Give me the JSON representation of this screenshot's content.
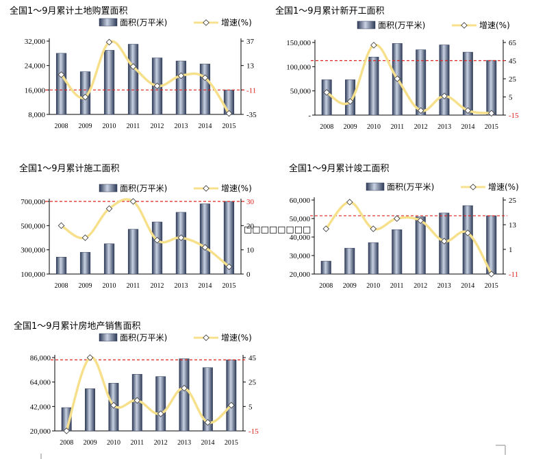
{
  "colors": {
    "bar_dark": "#2e3b57",
    "bar_light": "#c9d2e3",
    "line": "#f7e08c",
    "marker_fill": "#ffffff",
    "marker_stroke": "#333333",
    "ref_line": "#e0201a",
    "axis": "#000000"
  },
  "legend": {
    "bar_label": "面积(万平米)",
    "line_label": "增速(%)"
  },
  "overlay_text": "□□□□□□□□",
  "chart_data": [
    {
      "type": "bar+line",
      "title": "全国1～9月累计土地购置面积",
      "categories": [
        "2008",
        "2009",
        "2010",
        "2011",
        "2012",
        "2013",
        "2014",
        "2015"
      ],
      "series": [
        {
          "name": "面积(万平米)",
          "axis": "left",
          "values": [
            28000,
            22000,
            29000,
            31000,
            26500,
            25500,
            24500,
            16000
          ]
        },
        {
          "name": "增速(%)",
          "axis": "right",
          "values": [
            4,
            -18,
            36,
            12,
            -7,
            3,
            1,
            -34
          ]
        }
      ],
      "left_axis": {
        "min": 8000,
        "max": 32000,
        "ticks": [
          "8,000",
          "16,000",
          "24,000",
          "32,000"
        ],
        "tick_values": [
          8000,
          16000,
          24000,
          32000
        ]
      },
      "right_axis": {
        "min": -35,
        "max": 37,
        "ticks": [
          "-35",
          "-11",
          "13",
          "37"
        ],
        "tick_values": [
          -35,
          -11,
          13,
          37
        ],
        "red_tick": "-11"
      },
      "ref_line": {
        "axis": "right",
        "value": -11
      }
    },
    {
      "type": "bar+line",
      "title": "全国1～9月累计新开工面积",
      "categories": [
        "2008",
        "2009",
        "2010",
        "2011",
        "2012",
        "2013",
        "2014",
        "2015"
      ],
      "series": [
        {
          "name": "面积(万平米)",
          "axis": "left",
          "values": [
            73000,
            73000,
            120000,
            148000,
            135000,
            145000,
            130000,
            113000
          ]
        },
        {
          "name": "增速(%)",
          "axis": "right",
          "values": [
            10,
            0,
            62,
            25,
            -10,
            6,
            -10,
            -13
          ]
        }
      ],
      "left_axis": {
        "min": 0,
        "max": 150000,
        "ticks": [
          "-",
          "50,000",
          "100,000",
          "150,000"
        ],
        "tick_values": [
          0,
          50000,
          100000,
          150000
        ]
      },
      "right_axis": {
        "min": -15,
        "max": 65,
        "ticks": [
          "-15",
          "5",
          "25",
          "45",
          "65"
        ],
        "tick_values": [
          -15,
          5,
          25,
          45,
          65
        ],
        "red_tick": "-15"
      },
      "ref_line": {
        "axis": "right",
        "value": 45
      }
    },
    {
      "type": "bar+line",
      "title": "全国1～9月累计施工面积",
      "categories": [
        "2008",
        "2009",
        "2010",
        "2011",
        "2012",
        "2013",
        "2014",
        "2015"
      ],
      "series": [
        {
          "name": "面积(万平米)",
          "axis": "left",
          "values": [
            240000,
            280000,
            350000,
            470000,
            530000,
            610000,
            680000,
            700000
          ]
        },
        {
          "name": "增速(%)",
          "axis": "right",
          "values": [
            20,
            15,
            27,
            30,
            14,
            15,
            11,
            3
          ]
        }
      ],
      "left_axis": {
        "min": 100000,
        "max": 700000,
        "ticks": [
          "100,000",
          "300,000",
          "500,000",
          "700,000"
        ],
        "tick_values": [
          100000,
          300000,
          500000,
          700000
        ]
      },
      "right_axis": {
        "min": 0,
        "max": 30,
        "ticks": [
          "0",
          "10",
          "20",
          "30"
        ],
        "tick_values": [
          0,
          10,
          20,
          30
        ],
        "red_tick": "30"
      },
      "ref_line": {
        "axis": "right",
        "value": 30
      }
    },
    {
      "type": "bar+line",
      "title": "全国1～9月累计竣工面积",
      "categories": [
        "2008",
        "2009",
        "2010",
        "2011",
        "2012",
        "2013",
        "2014",
        "2015"
      ],
      "series": [
        {
          "name": "面积(万平米)",
          "axis": "left",
          "values": [
            27000,
            34000,
            37000,
            44000,
            51000,
            53000,
            57000,
            51500
          ]
        },
        {
          "name": "增速(%)",
          "axis": "right",
          "values": [
            11,
            24,
            11,
            16,
            15,
            5,
            9,
            -11
          ]
        }
      ],
      "left_axis": {
        "min": 20000,
        "max": 60000,
        "ticks": [
          "20,000",
          "30,000",
          "40,000",
          "50,000",
          "60,000"
        ],
        "tick_values": [
          20000,
          30000,
          40000,
          50000,
          60000
        ]
      },
      "right_axis": {
        "min": -11,
        "max": 25,
        "ticks": [
          "-11",
          "1",
          "13",
          "25"
        ],
        "tick_values": [
          -11,
          1,
          13,
          25
        ],
        "red_tick": "-11"
      },
      "ref_line": {
        "axis": "left",
        "value": 51500
      }
    },
    {
      "type": "bar+line",
      "title": "全国1～9月累计房地产销售面积",
      "categories": [
        "2008",
        "2009",
        "2010",
        "2011",
        "2012",
        "2013",
        "2014",
        "2015"
      ],
      "series": [
        {
          "name": "面积(万平米)",
          "axis": "left",
          "values": [
            41000,
            58000,
            63000,
            71000,
            69000,
            85000,
            77000,
            84000
          ]
        },
        {
          "name": "增速(%)",
          "axis": "right",
          "values": [
            -15,
            45,
            6,
            10,
            -1,
            20,
            -8,
            6
          ]
        }
      ],
      "left_axis": {
        "min": 20000,
        "max": 86000,
        "ticks": [
          "20,000",
          "42,000",
          "64,000",
          "86,000"
        ],
        "tick_values": [
          20000,
          42000,
          64000,
          86000
        ]
      },
      "right_axis": {
        "min": -15,
        "max": 45,
        "ticks": [
          "-15",
          "5",
          "25",
          "45"
        ],
        "tick_values": [
          -15,
          5,
          25,
          45
        ],
        "red_tick": "-15"
      },
      "ref_line": {
        "axis": "left",
        "value": 84000
      }
    }
  ]
}
